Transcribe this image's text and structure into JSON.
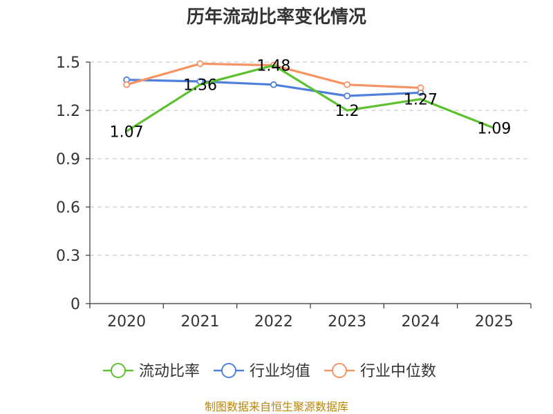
{
  "title": "历年流动比率变化情况",
  "source": "制图数据来自恒生聚源数据库",
  "colors": {
    "source": "#b8860b",
    "axis": "#333333",
    "grid": "#cccccc"
  },
  "chart_data": {
    "type": "line",
    "title": "历年流动比率变化情况",
    "xlabel": "",
    "ylabel": "",
    "categories": [
      "2020",
      "2021",
      "2022",
      "2023",
      "2024",
      "2025"
    ],
    "ylim": [
      0,
      1.5
    ],
    "yticks": [
      "0",
      "0.3",
      "0.6",
      "0.9",
      "1.2",
      "1.5"
    ],
    "grid": true,
    "legend_position": "bottom",
    "series": [
      {
        "name": "流动比率",
        "color": "#5cc12e",
        "values": [
          1.07,
          1.36,
          1.48,
          1.2,
          1.27,
          1.09
        ],
        "labels": [
          "1.07",
          "1.36",
          "1.48",
          "1.2",
          "1.27",
          "1.09"
        ]
      },
      {
        "name": "行业均值",
        "color": "#4e7fdc",
        "values": [
          1.39,
          1.38,
          1.36,
          1.29,
          1.31,
          null
        ]
      },
      {
        "name": "行业中位数",
        "color": "#f79363",
        "values": [
          1.36,
          1.49,
          1.48,
          1.36,
          1.34,
          null
        ]
      }
    ]
  }
}
